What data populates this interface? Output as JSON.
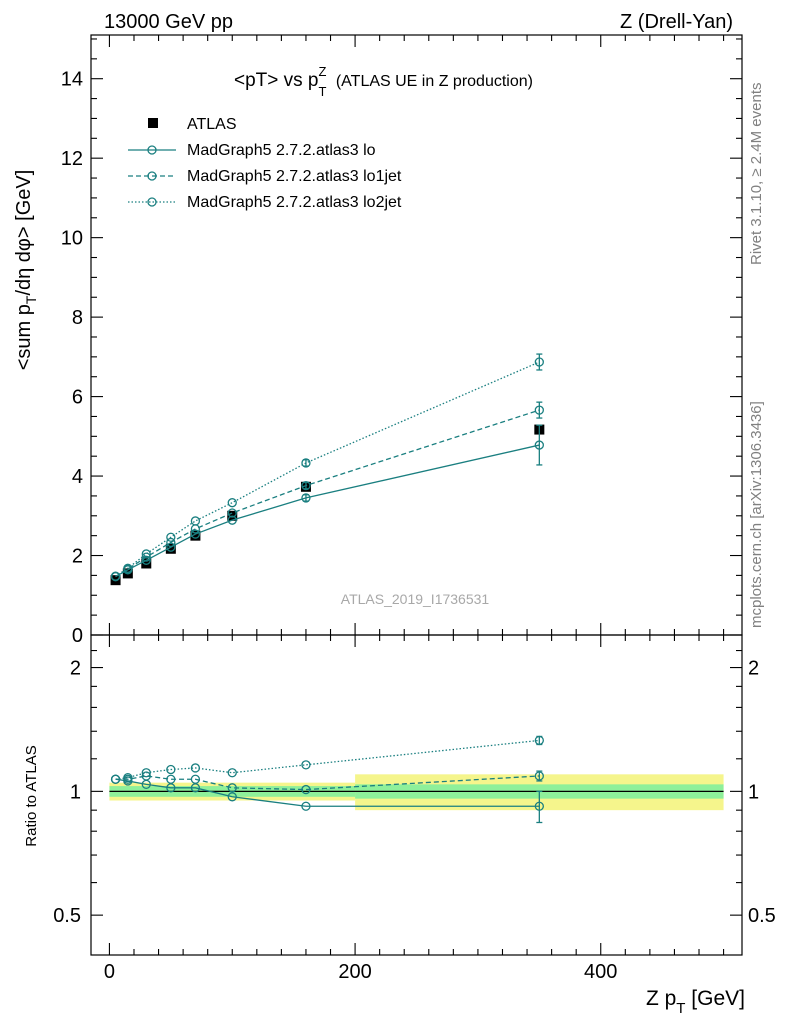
{
  "header": {
    "left": "13000 GeV pp",
    "right": "Z (Drell-Yan)"
  },
  "side_labels": {
    "rivet": "Rivet 3.1.10, ≥ 2.4M events",
    "mcplots": "mcplots.cern.ch [arXiv:1306.3436]"
  },
  "watermark": "ATLAS_2019_I1736531",
  "colors": {
    "data": "#000000",
    "mc": "#1a7f80",
    "band_inner": "#8ef09a",
    "band_outer": "#f5f58c"
  },
  "chart_data": [
    {
      "type": "line",
      "title": "<pT> vs p_T^Z (ATLAS UE in Z production)",
      "ylabel": "<sum p_T/dη dφ> [GeV]",
      "xlim": [
        -15,
        515
      ],
      "ylim": [
        0,
        15.1
      ],
      "yticks": [
        0,
        2,
        4,
        6,
        8,
        10,
        12,
        14
      ],
      "legend_position": "top-left",
      "x": [
        5,
        15,
        30,
        50,
        70,
        100,
        160,
        350
      ],
      "series": [
        {
          "name": "ATLAS",
          "style": "marker",
          "values": [
            1.38,
            1.55,
            1.8,
            2.17,
            2.5,
            3.0,
            3.73,
            5.17
          ]
        },
        {
          "name": "MadGraph5 2.7.2.atlas3 lo",
          "style": "solid",
          "values": [
            1.47,
            1.64,
            1.88,
            2.21,
            2.54,
            2.89,
            3.45,
            4.78
          ],
          "errors": [
            0.03,
            0.03,
            0.03,
            0.03,
            0.04,
            0.05,
            0.08,
            0.5
          ]
        },
        {
          "name": "MadGraph5 2.7.2.atlas3 lo1jet",
          "style": "dashed",
          "values": [
            1.47,
            1.66,
            1.96,
            2.33,
            2.67,
            3.07,
            3.76,
            5.66
          ],
          "errors": [
            0.03,
            0.03,
            0.03,
            0.04,
            0.04,
            0.05,
            0.08,
            0.2
          ]
        },
        {
          "name": "MadGraph5 2.7.2.atlas3 lo2jet",
          "style": "dotted",
          "values": [
            1.48,
            1.68,
            2.04,
            2.46,
            2.87,
            3.33,
            4.33,
            6.87
          ],
          "errors": [
            0.03,
            0.03,
            0.03,
            0.04,
            0.05,
            0.06,
            0.08,
            0.2
          ]
        }
      ]
    },
    {
      "type": "line",
      "xlabel": "Z p_T [GeV]",
      "ylabel": "Ratio to ATLAS",
      "ylog": true,
      "xlim": [
        -15,
        515
      ],
      "ylim": [
        0.4,
        2.4
      ],
      "yticks": [
        0.5,
        1,
        2
      ],
      "xticks": [
        0,
        200,
        400
      ],
      "x": [
        5,
        15,
        30,
        50,
        70,
        100,
        160,
        350
      ],
      "uncertainty_band": {
        "edges": [
          0,
          200,
          500
        ],
        "inner": [
          0.03,
          0.04
        ],
        "outer": [
          0.05,
          0.1
        ]
      },
      "series": [
        {
          "name": "MadGraph5 2.7.2.atlas3 lo",
          "style": "solid",
          "values": [
            1.07,
            1.06,
            1.04,
            1.02,
            1.02,
            0.97,
            0.92,
            0.92
          ],
          "errors": [
            0.01,
            0.01,
            0.01,
            0.01,
            0.01,
            0.01,
            0.01,
            0.08
          ]
        },
        {
          "name": "MadGraph5 2.7.2.atlas3 lo1jet",
          "style": "dashed",
          "values": [
            1.07,
            1.07,
            1.09,
            1.07,
            1.07,
            1.02,
            1.01,
            1.09
          ],
          "errors": [
            0.01,
            0.01,
            0.01,
            0.01,
            0.01,
            0.01,
            0.01,
            0.03
          ]
        },
        {
          "name": "MadGraph5 2.7.2.atlas3 lo2jet",
          "style": "dotted",
          "values": [
            1.07,
            1.08,
            1.11,
            1.13,
            1.14,
            1.11,
            1.16,
            1.33
          ],
          "errors": [
            0.01,
            0.01,
            0.01,
            0.01,
            0.01,
            0.01,
            0.01,
            0.03
          ]
        }
      ]
    }
  ]
}
